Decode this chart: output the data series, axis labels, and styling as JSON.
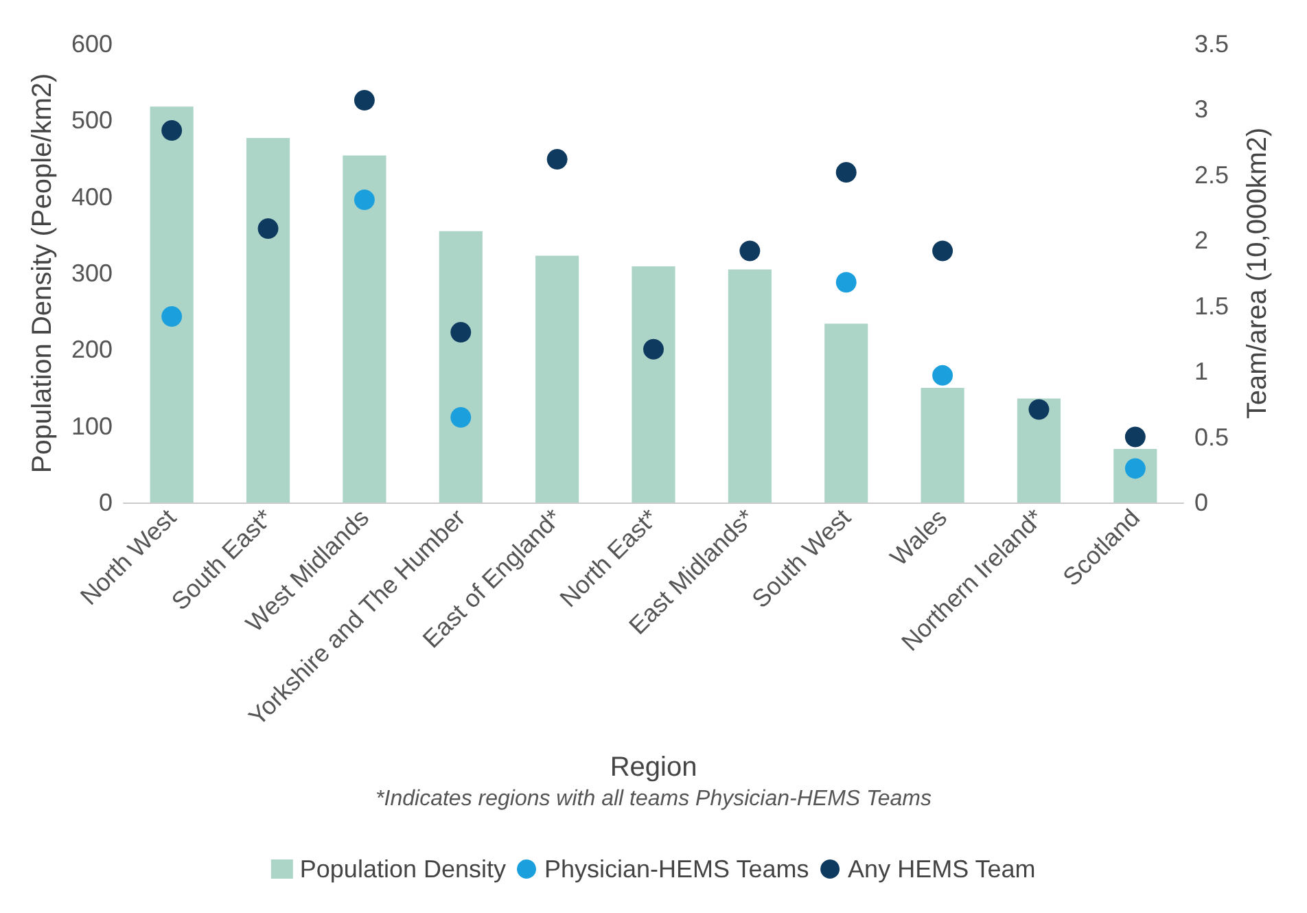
{
  "chart_data": {
    "type": "bar",
    "xlabel": "Region",
    "ylabel": "Population Density (People/km2)",
    "y2label": "Team/area (10,000km2)",
    "categories": [
      "North West",
      "South East*",
      "West Midlands",
      "Yorkshire and The Humber",
      "East of England*",
      "North East*",
      "East Midlands*",
      "South West",
      "Wales",
      "Northern Ireland*",
      "Scotland"
    ],
    "series": [
      {
        "name": "Population Density",
        "type": "bar",
        "color": "#acd5c8",
        "values": [
          518,
          477,
          454,
          355,
          323,
          309,
          305,
          234,
          150,
          136,
          70
        ]
      },
      {
        "name": "Physician-HEMS Teams",
        "type": "scatter",
        "axis": "y2",
        "color": "#1ca0dd",
        "values": [
          1.42,
          null,
          2.31,
          0.65,
          null,
          null,
          null,
          1.68,
          0.97,
          null,
          0.26
        ]
      },
      {
        "name": "Any HEMS Team",
        "type": "scatter",
        "axis": "y2",
        "color": "#0f3a5f",
        "values": [
          2.84,
          2.09,
          3.07,
          1.3,
          2.62,
          1.17,
          1.92,
          2.52,
          1.92,
          0.71,
          0.5
        ]
      }
    ],
    "ylim": [
      0,
      600
    ],
    "yticks": [
      0,
      100,
      200,
      300,
      400,
      500,
      600
    ],
    "y2lim": [
      0,
      3.5
    ],
    "y2ticks": [
      0,
      0.5,
      1,
      1.5,
      2,
      2.5,
      3,
      3.5
    ],
    "annotations": [
      "*Indicates regions with all teams Physician-HEMS Teams"
    ],
    "grid": false,
    "legend": "bottom",
    "marker": "circle"
  }
}
